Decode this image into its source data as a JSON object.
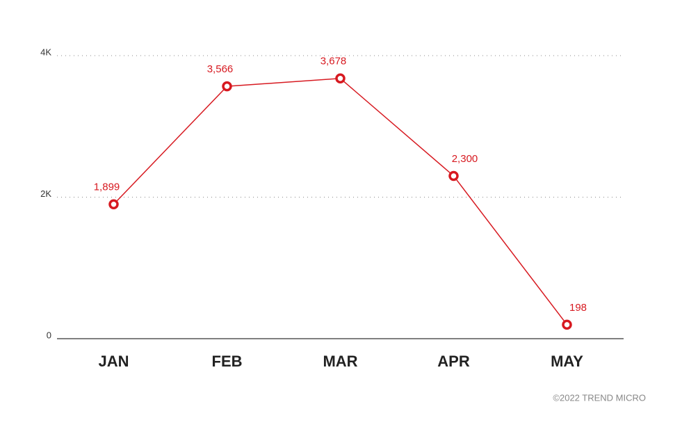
{
  "chart_data": {
    "type": "line",
    "categories": [
      "JAN",
      "FEB",
      "MAR",
      "APR",
      "MAY"
    ],
    "series": [
      {
        "name": null,
        "color": "#d71920",
        "values": [
          1899,
          3566,
          3678,
          2300,
          198
        ],
        "value_labels": [
          "1,899",
          "3,566",
          "3,678",
          "2,300",
          "198"
        ]
      }
    ],
    "ylim": [
      0,
      4000
    ],
    "yticks": [
      0,
      {
        "value": 2000,
        "label": "2K"
      },
      {
        "value": 4000,
        "label": "4K"
      }
    ],
    "grid": true,
    "credit": "©2022 TREND MICRO"
  }
}
